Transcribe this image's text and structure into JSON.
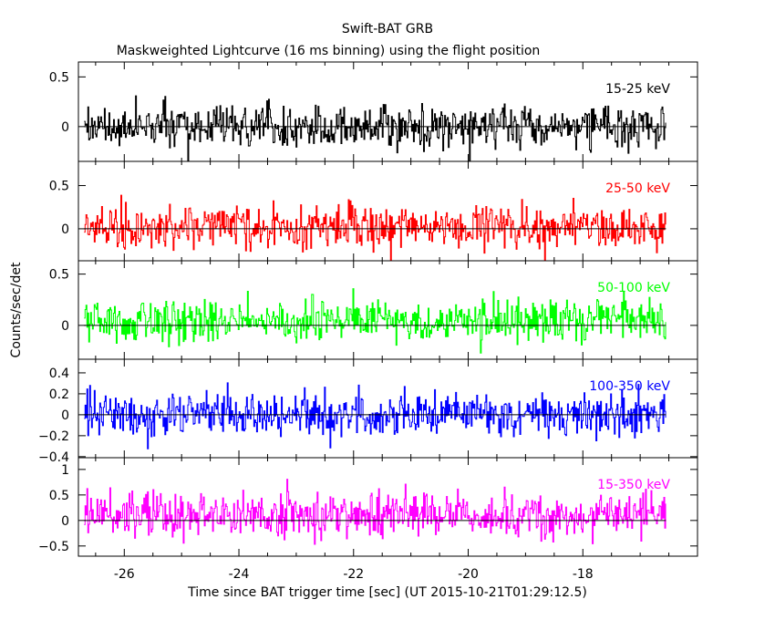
{
  "chart_data": {
    "type": "line",
    "title": "Swift-BAT GRB",
    "subtitle": "Maskweighted Lightcurve (16 ms binning) using the flight position",
    "xlabel": "Time since BAT trigger time [sec] (UT 2015-10-21T01:29:12.5)",
    "ylabel": "Counts/sec/det",
    "xlim": [
      -26.8,
      -16.0
    ],
    "x_ticks": [
      "-26",
      "-24",
      "-22",
      "-20",
      "-18"
    ],
    "x_tick_values": [
      -26,
      -24,
      -22,
      -20,
      -18
    ],
    "data_x_range": [
      -26.7,
      -16.55
    ],
    "bin_seconds": 0.016,
    "grid": false,
    "panels": [
      {
        "name": "15-25 keV",
        "color": "#000000",
        "ylim": [
          -0.35,
          0.65
        ],
        "y_ticks": [
          "0.5",
          "0"
        ],
        "y_tick_values": [
          0.5,
          0
        ],
        "mean": 0.0,
        "noise_range": [
          -0.35,
          0.6
        ]
      },
      {
        "name": "25-50 keV",
        "color": "#ff0000",
        "ylim": [
          -0.37,
          0.78
        ],
        "y_ticks": [
          "0.5",
          "0"
        ],
        "y_tick_values": [
          0.5,
          0
        ],
        "mean": 0.02,
        "noise_range": [
          -0.37,
          0.75
        ]
      },
      {
        "name": "50-100 keV",
        "color": "#00ff00",
        "ylim": [
          -0.33,
          0.63
        ],
        "y_ticks": [
          "0.5",
          "0"
        ],
        "y_tick_values": [
          0.5,
          0
        ],
        "mean": 0.05,
        "noise_range": [
          -0.33,
          0.62
        ]
      },
      {
        "name": "100-350 keV",
        "color": "#0000ff",
        "ylim": [
          -0.41,
          0.53
        ],
        "y_ticks": [
          "0.4",
          "0.2",
          "0",
          "−0.2",
          "−0.4"
        ],
        "y_tick_values": [
          0.4,
          0.2,
          0,
          -0.2,
          -0.4
        ],
        "mean": 0.0,
        "noise_range": [
          -0.4,
          0.5
        ]
      },
      {
        "name": "15-350 keV",
        "color": "#ff00ff",
        "ylim": [
          -0.7,
          1.23
        ],
        "y_ticks": [
          "1",
          "0.5",
          "0",
          "−0.5"
        ],
        "y_tick_values": [
          1,
          0.5,
          0,
          -0.5
        ],
        "mean": 0.1,
        "noise_range": [
          -0.7,
          1.2
        ]
      }
    ]
  }
}
